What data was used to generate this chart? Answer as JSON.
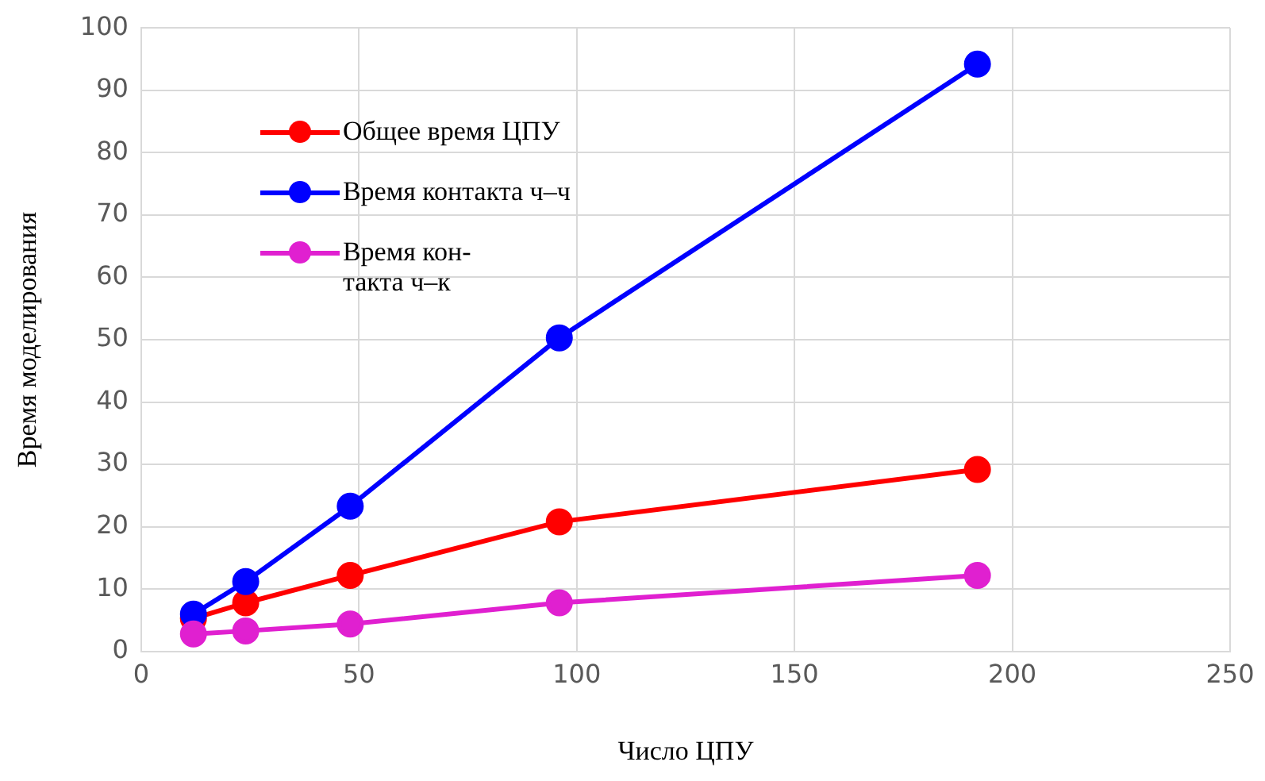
{
  "chart_data": {
    "type": "line",
    "xlabel": "Число ЦПУ",
    "ylabel": "Время моделирования",
    "x": [
      12,
      24,
      48,
      96,
      192
    ],
    "series": [
      {
        "name": "Общее время ЦПУ",
        "color": "#ff0000",
        "values": [
          5.3,
          7.8,
          12.2,
          20.8,
          29.2
        ]
      },
      {
        "name": "Время контакта ч–ч",
        "color": "#0000ff",
        "values": [
          6,
          11.2,
          23.3,
          50.3,
          94.2
        ]
      },
      {
        "name": "Время кон-\nтакта ч–к",
        "color": "#e020d0",
        "values": [
          2.8,
          3.3,
          4.4,
          7.8,
          12.2
        ]
      }
    ],
    "xlim": [
      0,
      250
    ],
    "xticks": [
      0,
      50,
      100,
      150,
      200,
      250
    ],
    "ylim": [
      0,
      100
    ],
    "yticks": [
      0,
      10,
      20,
      30,
      40,
      50,
      60,
      70,
      80,
      90,
      100
    ],
    "grid": true,
    "legend": "top left",
    "marker": "circle",
    "line_style": "solid"
  }
}
